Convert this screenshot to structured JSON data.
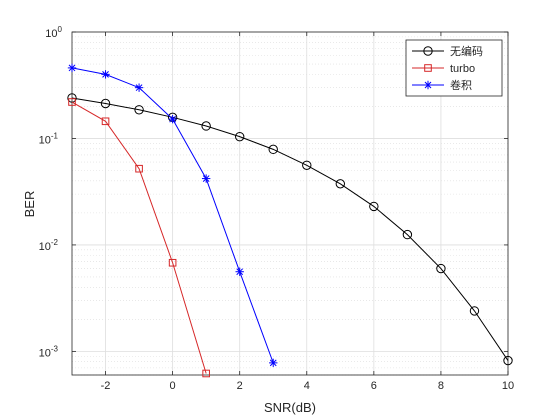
{
  "chart_data": {
    "type": "line",
    "title": "",
    "xlabel": "SNR(dB)",
    "ylabel": "BER",
    "xlim": [
      -3,
      10
    ],
    "ylim": [
      0.0006,
      1
    ],
    "yscale": "log",
    "grid": true,
    "x_ticks": [
      -2,
      0,
      2,
      4,
      6,
      8,
      10
    ],
    "x_tick_labels": [
      "-2",
      "0",
      "2",
      "4",
      "6",
      "8",
      "10"
    ],
    "y_ticks": [
      {
        "value": 0.001,
        "base": "10",
        "exp": "-3"
      },
      {
        "value": 0.01,
        "base": "10",
        "exp": "-2"
      },
      {
        "value": 0.1,
        "base": "10",
        "exp": "-1"
      },
      {
        "value": 1,
        "base": "10",
        "exp": "0"
      }
    ],
    "legend_position": "top-right",
    "series": [
      {
        "name": "无编码",
        "color": "#000000",
        "marker": "circle",
        "x": [
          -3,
          -2,
          -1,
          0,
          1,
          2,
          3,
          4,
          5,
          6,
          7,
          8,
          9,
          10
        ],
        "y": [
          0.24,
          0.213,
          0.186,
          0.158,
          0.131,
          0.104,
          0.079,
          0.056,
          0.0375,
          0.023,
          0.0125,
          0.006,
          0.0024,
          0.00082
        ]
      },
      {
        "name": "turbo",
        "color": "#d62728",
        "marker": "square",
        "x": [
          -3,
          -2,
          -1,
          0,
          1
        ],
        "y": [
          0.22,
          0.145,
          0.052,
          0.0068,
          0.00062
        ]
      },
      {
        "name": "卷积",
        "color": "#0000ff",
        "marker": "star",
        "x": [
          -3,
          -2,
          -1,
          0,
          1,
          2,
          3
        ],
        "y": [
          0.46,
          0.4,
          0.3,
          0.152,
          0.042,
          0.0056,
          0.00078
        ]
      }
    ]
  }
}
